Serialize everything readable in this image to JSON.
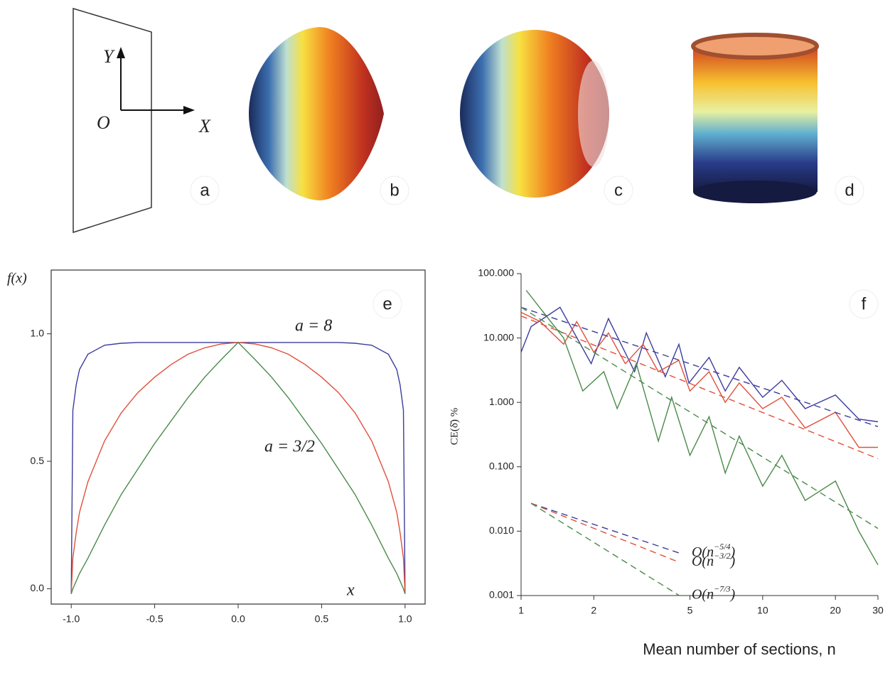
{
  "panel_labels": [
    "a",
    "b",
    "c",
    "d"
  ],
  "diagram": {
    "y_label": "Y",
    "origin_label": "O",
    "x_label": "X"
  },
  "chart_data": [
    {
      "type": "line",
      "panel": "e",
      "ylabel": "f(x)",
      "xlabel": "x",
      "annotations": [
        "a = 8",
        "a = 3/2"
      ],
      "x": [
        -1,
        -0.99,
        -0.97,
        -0.95,
        -0.9,
        -0.8,
        -0.7,
        -0.6,
        -0.5,
        -0.4,
        -0.3,
        -0.2,
        -0.1,
        0,
        0.1,
        0.2,
        0.3,
        0.4,
        0.5,
        0.6,
        0.7,
        0.8,
        0.9,
        0.95,
        0.97,
        0.99,
        1
      ],
      "series": [
        {
          "color": "#3c3c9c",
          "values": [
            -0.02,
            0.7,
            0.8,
            0.86,
            0.92,
            0.955,
            0.963,
            0.966,
            0.966,
            0.966,
            0.966,
            0.966,
            0.966,
            0.966,
            0.966,
            0.966,
            0.966,
            0.966,
            0.966,
            0.966,
            0.963,
            0.955,
            0.92,
            0.86,
            0.8,
            0.7,
            -0.02
          ]
        },
        {
          "color": "#e0503c",
          "values": [
            -0.02,
            0.12,
            0.22,
            0.3,
            0.42,
            0.58,
            0.69,
            0.77,
            0.83,
            0.88,
            0.92,
            0.945,
            0.96,
            0.966,
            0.96,
            0.945,
            0.92,
            0.88,
            0.83,
            0.77,
            0.69,
            0.58,
            0.42,
            0.3,
            0.22,
            0.12,
            -0.02
          ]
        },
        {
          "color": "#4a8a4a",
          "values": [
            -0.02,
            0.0,
            0.03,
            0.06,
            0.12,
            0.25,
            0.37,
            0.47,
            0.57,
            0.66,
            0.75,
            0.83,
            0.9,
            0.966,
            0.9,
            0.83,
            0.75,
            0.66,
            0.57,
            0.47,
            0.37,
            0.25,
            0.12,
            0.06,
            0.03,
            0.0,
            -0.02
          ]
        }
      ],
      "xlim": [
        -1.12,
        1.12
      ],
      "ylim": [
        -0.06,
        1.25
      ],
      "xticks": [
        {
          "value": -1,
          "label": "-1.0"
        },
        {
          "value": -0.5,
          "label": "-0.5"
        },
        {
          "value": 0,
          "label": "0.0"
        },
        {
          "value": 0.5,
          "label": "0.5"
        },
        {
          "value": 1,
          "label": "1.0"
        }
      ],
      "yticks": [
        {
          "value": 0,
          "label": "0.0"
        },
        {
          "value": 0.5,
          "label": "0.5"
        },
        {
          "value": 1,
          "label": "1.0"
        }
      ],
      "grid": false
    },
    {
      "type": "line",
      "panel": "f",
      "xscale": "log",
      "yscale": "log",
      "ylabel": "CE(δ̆)  %",
      "xlabel": "Mean number of sections, n",
      "xlim": [
        1,
        30
      ],
      "ylim": [
        0.001,
        100
      ],
      "xticks": [
        1,
        2,
        5,
        10,
        20,
        30
      ],
      "yticks": [
        {
          "value": 0.001,
          "label": "0.001"
        },
        {
          "value": 0.01,
          "label": "0.010"
        },
        {
          "value": 0.1,
          "label": "0.100"
        },
        {
          "value": 1,
          "label": "1.000"
        },
        {
          "value": 10,
          "label": "10.000"
        },
        {
          "value": 100,
          "label": "100.000"
        }
      ],
      "grid": false,
      "series": [
        {
          "color": "#3c3c9c",
          "style": "solid",
          "x": [
            1,
            1.1,
            1.45,
            1.95,
            2.3,
            2.95,
            3.3,
            3.95,
            4.5,
            4.95,
            6,
            7,
            8,
            10,
            12,
            15,
            20,
            25,
            30
          ],
          "values": [
            6,
            15,
            30,
            4,
            20,
            3,
            12,
            2.5,
            8,
            2,
            5,
            1.5,
            3.5,
            1.2,
            2.2,
            0.8,
            1.3,
            0.55,
            0.5
          ]
        },
        {
          "color": "#e0503c",
          "style": "solid",
          "x": [
            1,
            1.2,
            1.5,
            1.7,
            2,
            2.3,
            2.7,
            3.2,
            3.7,
            4.5,
            5,
            6,
            7,
            8,
            10,
            12,
            15,
            20,
            25,
            30
          ],
          "values": [
            25,
            18,
            8,
            18,
            6,
            12,
            4,
            8,
            3,
            4.5,
            1.5,
            3,
            1,
            2,
            0.8,
            1.2,
            0.4,
            0.7,
            0.2,
            0.2
          ]
        },
        {
          "color": "#4a8a4a",
          "style": "solid",
          "x": [
            1.05,
            1.5,
            1.8,
            2.2,
            2.5,
            3,
            3.7,
            4.2,
            5,
            6,
            7,
            8,
            10,
            12,
            15,
            20,
            25,
            30
          ],
          "values": [
            55,
            10,
            1.5,
            3,
            0.8,
            4,
            0.25,
            1.2,
            0.15,
            0.6,
            0.08,
            0.3,
            0.05,
            0.15,
            0.03,
            0.06,
            0.01,
            0.003
          ]
        },
        {
          "color": "#3c3c9c",
          "style": "dashed",
          "x": [
            1,
            30
          ],
          "values": [
            30,
            0.42
          ]
        },
        {
          "color": "#e0503c",
          "style": "dashed",
          "x": [
            1,
            30
          ],
          "values": [
            22,
            0.134
          ]
        },
        {
          "color": "#4a8a4a",
          "style": "dashed",
          "x": [
            1,
            30
          ],
          "values": [
            30,
            0.011
          ]
        },
        {
          "color": "#3c3c9c",
          "style": "dashed",
          "x": [
            1.1,
            4.5
          ],
          "values": [
            0.027,
            0.0046
          ],
          "label": {
            "base": "O(n",
            "exponent": "−5/4",
            "close": ")"
          }
        },
        {
          "color": "#e0503c",
          "style": "dashed",
          "x": [
            1.1,
            4.5
          ],
          "values": [
            0.027,
            0.0033
          ],
          "label": {
            "base": "O(n",
            "exponent": "−3/2",
            "close": ")"
          }
        },
        {
          "color": "#4a8a4a",
          "style": "dashed",
          "x": [
            1.1,
            4.5
          ],
          "values": [
            0.027,
            0.00101
          ],
          "label": {
            "base": "O(n",
            "exponent": "−7/3",
            "close": ")"
          }
        }
      ]
    }
  ]
}
